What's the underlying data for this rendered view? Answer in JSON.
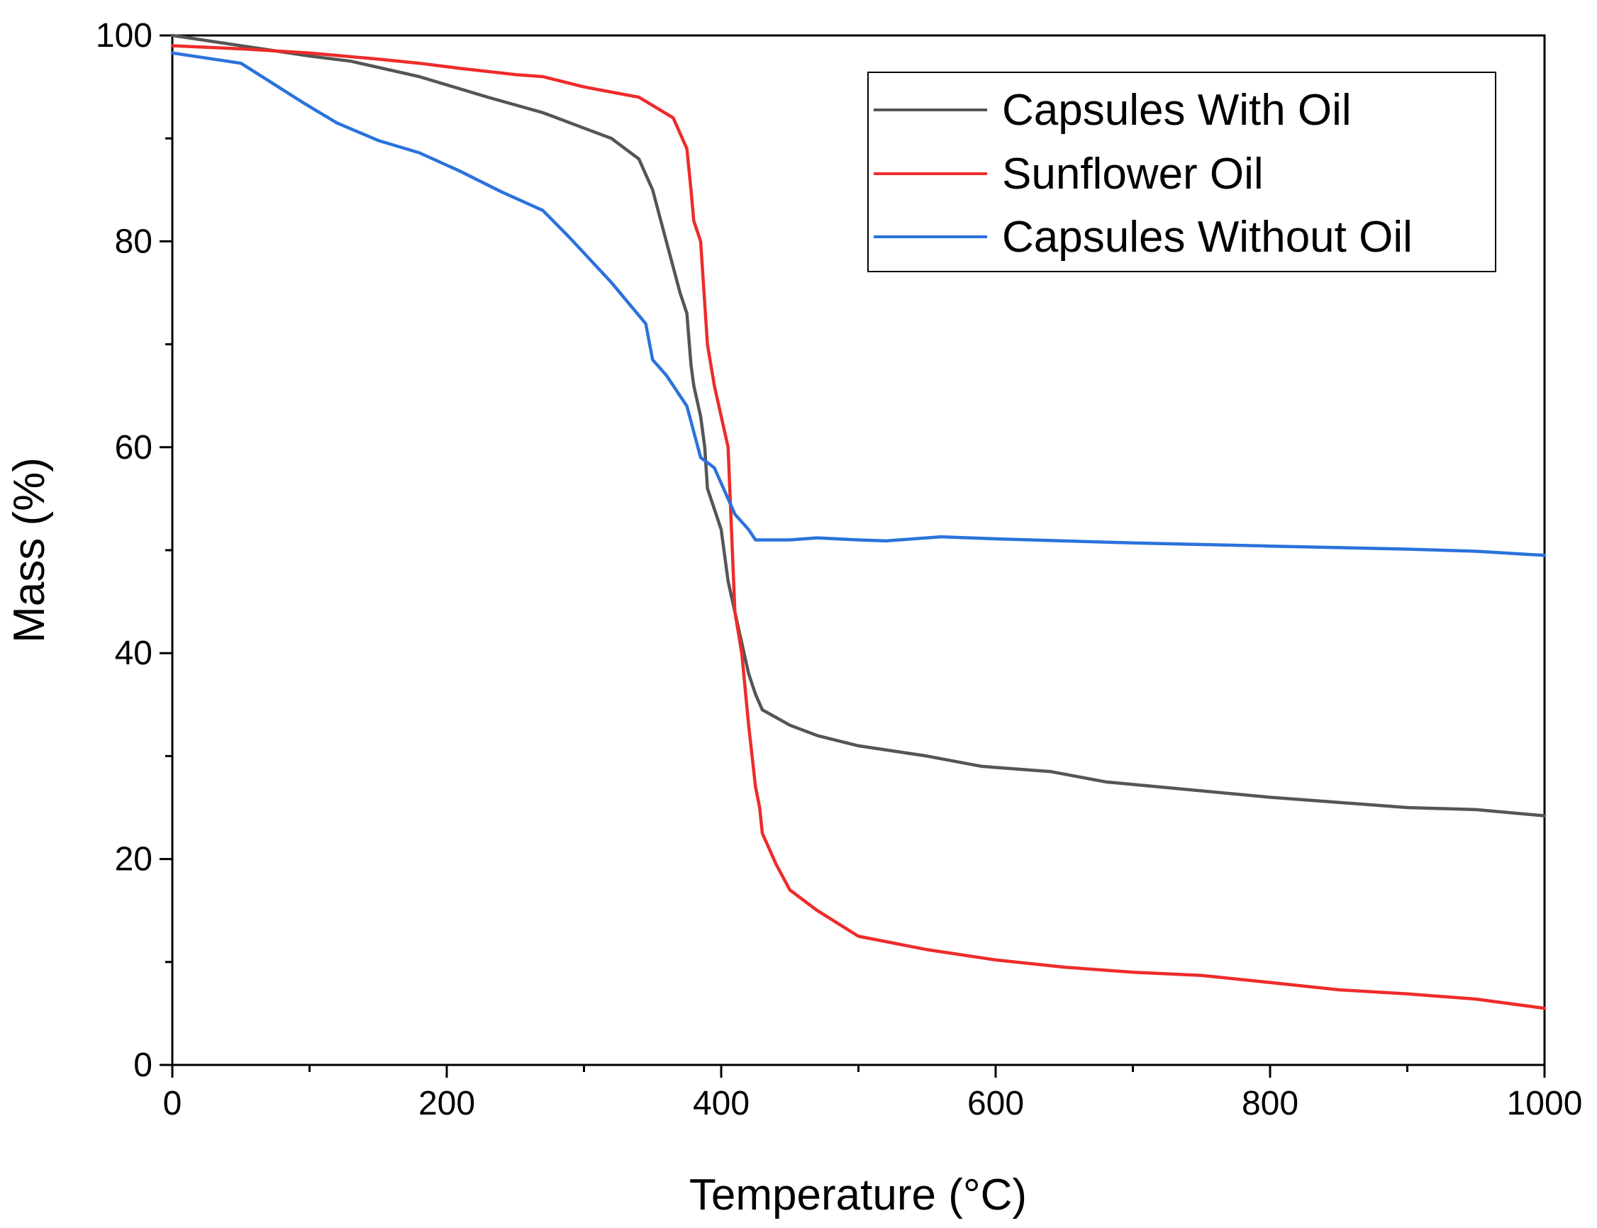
{
  "chart_data": {
    "type": "line",
    "title": "",
    "xlabel": "Temperature (°C)",
    "ylabel": "Mass (%)",
    "xlim": [
      0,
      1000
    ],
    "ylim": [
      0,
      100
    ],
    "x_ticks": [
      0,
      200,
      400,
      600,
      800,
      1000
    ],
    "x_tick_labels": [
      "0",
      "200",
      "400",
      "600",
      "800",
      "1000"
    ],
    "y_ticks": [
      0,
      20,
      40,
      60,
      80,
      100
    ],
    "y_tick_labels": [
      "0",
      "20",
      "40",
      "60",
      "80",
      "100"
    ],
    "grid": false,
    "legend_position": "top-right",
    "series": [
      {
        "name": "Capsules With Oil",
        "color": "#555555",
        "x": [
          0,
          50,
          100,
          130,
          180,
          230,
          270,
          300,
          320,
          340,
          350,
          360,
          370,
          375,
          378,
          380,
          385,
          388,
          390,
          395,
          400,
          405,
          410,
          415,
          420,
          425,
          430,
          450,
          470,
          500,
          550,
          590,
          640,
          680,
          720,
          800,
          850,
          900,
          950,
          1000
        ],
        "y": [
          100,
          99,
          98,
          97.5,
          96,
          94,
          92.5,
          91,
          90,
          88,
          85,
          80,
          75,
          73,
          68,
          66,
          63,
          60,
          56,
          54,
          52,
          47,
          44,
          41,
          38,
          36,
          34.5,
          33,
          32,
          31,
          30,
          29,
          28.5,
          27.5,
          27,
          26,
          25.5,
          25,
          24.8,
          24.2
        ]
      },
      {
        "name": "Sunflower Oil",
        "color": "#ee2b2b",
        "x": [
          0,
          50,
          100,
          150,
          180,
          210,
          250,
          270,
          300,
          340,
          365,
          375,
          378,
          380,
          385,
          390,
          395,
          400,
          405,
          410,
          415,
          420,
          425,
          428,
          430,
          440,
          450,
          470,
          500,
          550,
          600,
          650,
          700,
          750,
          800,
          850,
          900,
          950,
          1000
        ],
        "y": [
          99,
          98.7,
          98.3,
          97.7,
          97.3,
          96.8,
          96.2,
          96,
          95,
          94,
          92,
          89,
          85,
          82,
          80,
          70,
          66,
          63,
          60,
          44,
          40,
          33,
          27,
          25,
          22.5,
          19.5,
          17,
          15,
          12.5,
          11.2,
          10.2,
          9.5,
          9,
          8.7,
          8,
          7.3,
          6.9,
          6.4,
          5.5
        ]
      },
      {
        "name": "Capsules Without Oil",
        "color": "#2a72dd",
        "x": [
          0,
          50,
          95,
          120,
          150,
          180,
          210,
          240,
          270,
          290,
          320,
          345,
          350,
          360,
          375,
          385,
          395,
          400,
          410,
          420,
          425,
          430,
          450,
          470,
          500,
          520,
          560,
          600,
          700,
          800,
          900,
          950,
          1000
        ],
        "y": [
          98.3,
          97.3,
          93.5,
          91.5,
          89.8,
          88.6,
          86.8,
          84.8,
          83,
          80.3,
          76,
          72,
          68.5,
          67,
          64,
          59,
          58,
          56.5,
          53.5,
          52,
          51,
          51,
          51,
          51.2,
          51,
          50.9,
          51.3,
          51.1,
          50.7,
          50.4,
          50.1,
          49.9,
          49.5
        ]
      }
    ]
  }
}
